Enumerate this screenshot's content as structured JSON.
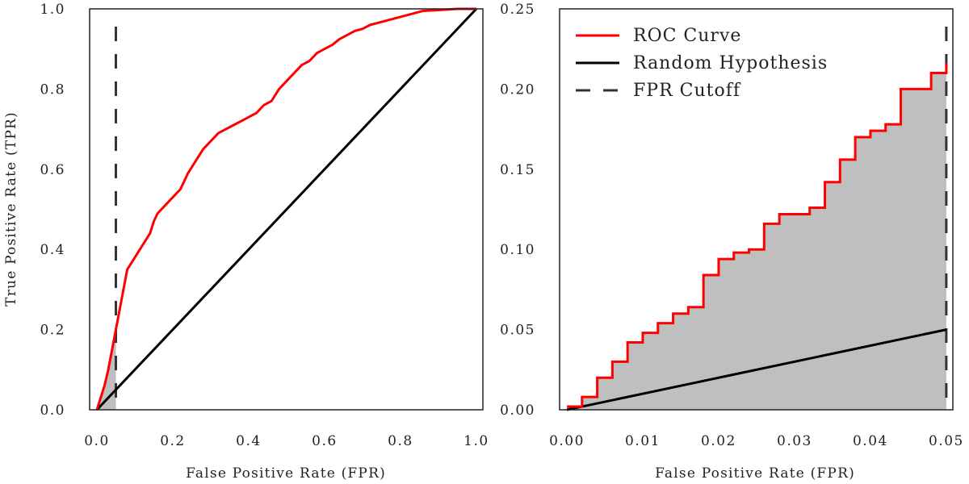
{
  "chart_data": [
    {
      "type": "line",
      "xlabel": "False Positive Rate (FPR)",
      "ylabel": "True Positive Rate (TPR)",
      "xlim": [
        0.0,
        1.0
      ],
      "ylim": [
        0.0,
        1.0
      ],
      "xticks": [
        "0.0",
        "0.2",
        "0.4",
        "0.6",
        "0.8",
        "1.0"
      ],
      "yticks": [
        "0.0",
        "0.2",
        "0.4",
        "0.6",
        "0.8",
        "1.0"
      ],
      "grid": false,
      "fpr_cutoff": 0.05,
      "series": [
        {
          "name": "ROC Curve",
          "color": "#ff0000",
          "x": [
            0.0,
            0.01,
            0.02,
            0.03,
            0.04,
            0.05,
            0.06,
            0.07,
            0.08,
            0.1,
            0.12,
            0.14,
            0.15,
            0.16,
            0.17,
            0.18,
            0.2,
            0.22,
            0.23,
            0.24,
            0.26,
            0.28,
            0.3,
            0.32,
            0.34,
            0.36,
            0.38,
            0.4,
            0.42,
            0.44,
            0.46,
            0.48,
            0.5,
            0.52,
            0.54,
            0.56,
            0.58,
            0.6,
            0.62,
            0.64,
            0.66,
            0.68,
            0.7,
            0.72,
            0.74,
            0.76,
            0.78,
            0.8,
            0.82,
            0.84,
            0.86,
            0.9,
            0.95,
            1.0
          ],
          "y": [
            0.0,
            0.03,
            0.06,
            0.1,
            0.15,
            0.2,
            0.25,
            0.3,
            0.35,
            0.38,
            0.41,
            0.44,
            0.47,
            0.49,
            0.5,
            0.51,
            0.53,
            0.55,
            0.57,
            0.59,
            0.62,
            0.65,
            0.67,
            0.69,
            0.7,
            0.71,
            0.72,
            0.73,
            0.74,
            0.76,
            0.77,
            0.8,
            0.82,
            0.84,
            0.86,
            0.87,
            0.89,
            0.9,
            0.91,
            0.925,
            0.935,
            0.945,
            0.95,
            0.96,
            0.965,
            0.97,
            0.975,
            0.98,
            0.985,
            0.99,
            0.995,
            0.997,
            1.0,
            1.0
          ]
        },
        {
          "name": "Random Hypothesis",
          "color": "#000000",
          "x": [
            0.0,
            1.0
          ],
          "y": [
            0.0,
            1.0
          ]
        },
        {
          "name": "FPR Cutoff",
          "color": "#333333",
          "style": "dashed"
        }
      ]
    },
    {
      "type": "line",
      "xlabel": "False Positive Rate (FPR)",
      "ylabel": "",
      "xlim": [
        0.0,
        0.05
      ],
      "ylim": [
        0.0,
        0.25
      ],
      "xticks": [
        "0.00",
        "0.01",
        "0.02",
        "0.03",
        "0.04",
        "0.05"
      ],
      "yticks": [
        "0.00",
        "0.05",
        "0.10",
        "0.15",
        "0.20",
        "0.25"
      ],
      "grid": false,
      "legend": "top-left",
      "fpr_cutoff": 0.05,
      "series": [
        {
          "name": "ROC Curve",
          "color": "#ff0000",
          "step_x": [
            0.0,
            0.002,
            0.004,
            0.006,
            0.008,
            0.01,
            0.012,
            0.014,
            0.016,
            0.018,
            0.02,
            0.022,
            0.024,
            0.026,
            0.028,
            0.032,
            0.034,
            0.036,
            0.038,
            0.04,
            0.042,
            0.044,
            0.048,
            0.05
          ],
          "step_y": [
            0.002,
            0.008,
            0.02,
            0.03,
            0.042,
            0.048,
            0.054,
            0.06,
            0.064,
            0.084,
            0.094,
            0.098,
            0.1,
            0.116,
            0.122,
            0.126,
            0.142,
            0.156,
            0.17,
            0.174,
            0.178,
            0.2,
            0.21,
            0.216
          ]
        },
        {
          "name": "Random Hypothesis",
          "color": "#000000",
          "x": [
            0.0,
            0.05
          ],
          "y": [
            0.0,
            0.05
          ]
        },
        {
          "name": "FPR Cutoff",
          "color": "#333333",
          "style": "dashed"
        }
      ]
    }
  ],
  "legend": {
    "items": [
      {
        "label": "ROC Curve",
        "color": "#ff0000",
        "style": "solid"
      },
      {
        "label": "Random Hypothesis",
        "color": "#000000",
        "style": "solid"
      },
      {
        "label": "FPR Cutoff",
        "color": "#333333",
        "style": "dashed"
      }
    ]
  },
  "fill_color": "#bfbfbf"
}
